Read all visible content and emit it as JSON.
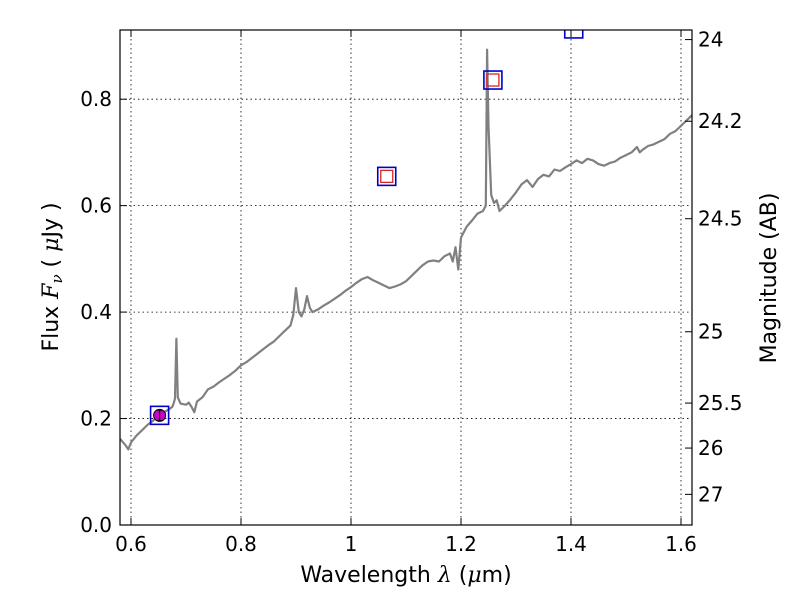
{
  "chart_data": {
    "type": "line",
    "title": "",
    "xlabel": {
      "prefix": "Wavelength  ",
      "symbol": "λ",
      "unit_open": " (",
      "unit_mu": "μ",
      "unit_rest": "m)"
    },
    "ylabel": {
      "prefix": "Flux  ",
      "symbol": "F",
      "sub": "ν",
      "unit_open": "  ( ",
      "unit_mu": "μ",
      "unit_rest": "Jy )"
    },
    "y2label": "Magnitude (AB)",
    "xlim": [
      0.58,
      1.62
    ],
    "ylim": [
      0.0,
      0.93
    ],
    "grid": true,
    "x_ticks": [
      0.6,
      0.8,
      1.0,
      1.2,
      1.4,
      1.6
    ],
    "x_tick_labels": [
      "0.6",
      "0.8",
      "1",
      "1.2",
      "1.4",
      "1.6"
    ],
    "y_ticks": [
      0.0,
      0.2,
      0.4,
      0.6,
      0.8
    ],
    "y_tick_labels": [
      "0.0",
      "0.2",
      "0.4",
      "0.6",
      "0.8"
    ],
    "y2_ticks": [
      24,
      24.2,
      24.5,
      25,
      25.5,
      26,
      27
    ],
    "y2_tick_labels": [
      "24",
      "24.2",
      "24.5",
      "25",
      "25.5",
      "26",
      "27"
    ],
    "series": [
      {
        "color": "#808080",
        "points": [
          [
            0.58,
            0.162
          ],
          [
            0.59,
            0.15
          ],
          [
            0.595,
            0.142
          ],
          [
            0.6,
            0.155
          ],
          [
            0.61,
            0.168
          ],
          [
            0.62,
            0.178
          ],
          [
            0.63,
            0.188
          ],
          [
            0.64,
            0.196
          ],
          [
            0.65,
            0.206
          ],
          [
            0.66,
            0.212
          ],
          [
            0.67,
            0.218
          ],
          [
            0.675,
            0.222
          ],
          [
            0.678,
            0.23
          ],
          [
            0.68,
            0.238
          ],
          [
            0.6825,
            0.35
          ],
          [
            0.685,
            0.24
          ],
          [
            0.69,
            0.228
          ],
          [
            0.7,
            0.226
          ],
          [
            0.705,
            0.23
          ],
          [
            0.71,
            0.222
          ],
          [
            0.715,
            0.212
          ],
          [
            0.72,
            0.232
          ],
          [
            0.73,
            0.24
          ],
          [
            0.74,
            0.255
          ],
          [
            0.75,
            0.26
          ],
          [
            0.76,
            0.268
          ],
          [
            0.77,
            0.275
          ],
          [
            0.78,
            0.282
          ],
          [
            0.79,
            0.29
          ],
          [
            0.8,
            0.3
          ],
          [
            0.81,
            0.306
          ],
          [
            0.82,
            0.314
          ],
          [
            0.83,
            0.322
          ],
          [
            0.84,
            0.33
          ],
          [
            0.85,
            0.338
          ],
          [
            0.86,
            0.345
          ],
          [
            0.87,
            0.355
          ],
          [
            0.88,
            0.365
          ],
          [
            0.89,
            0.375
          ],
          [
            0.895,
            0.395
          ],
          [
            0.9,
            0.445
          ],
          [
            0.905,
            0.4
          ],
          [
            0.91,
            0.392
          ],
          [
            0.915,
            0.405
          ],
          [
            0.92,
            0.43
          ],
          [
            0.925,
            0.408
          ],
          [
            0.93,
            0.4
          ],
          [
            0.94,
            0.405
          ],
          [
            0.95,
            0.412
          ],
          [
            0.96,
            0.418
          ],
          [
            0.97,
            0.425
          ],
          [
            0.98,
            0.432
          ],
          [
            0.99,
            0.44
          ],
          [
            1.0,
            0.447
          ],
          [
            1.01,
            0.455
          ],
          [
            1.02,
            0.462
          ],
          [
            1.03,
            0.466
          ],
          [
            1.04,
            0.46
          ],
          [
            1.05,
            0.455
          ],
          [
            1.06,
            0.45
          ],
          [
            1.07,
            0.445
          ],
          [
            1.08,
            0.448
          ],
          [
            1.09,
            0.452
          ],
          [
            1.1,
            0.458
          ],
          [
            1.11,
            0.468
          ],
          [
            1.12,
            0.478
          ],
          [
            1.13,
            0.488
          ],
          [
            1.14,
            0.495
          ],
          [
            1.15,
            0.497
          ],
          [
            1.16,
            0.495
          ],
          [
            1.17,
            0.505
          ],
          [
            1.18,
            0.51
          ],
          [
            1.185,
            0.495
          ],
          [
            1.19,
            0.522
          ],
          [
            1.195,
            0.48
          ],
          [
            1.2,
            0.54
          ],
          [
            1.21,
            0.56
          ],
          [
            1.22,
            0.572
          ],
          [
            1.23,
            0.585
          ],
          [
            1.24,
            0.59
          ],
          [
            1.245,
            0.6
          ],
          [
            1.2475,
            0.893
          ],
          [
            1.25,
            0.75
          ],
          [
            1.255,
            0.62
          ],
          [
            1.26,
            0.605
          ],
          [
            1.265,
            0.61
          ],
          [
            1.27,
            0.59
          ],
          [
            1.28,
            0.6
          ],
          [
            1.29,
            0.612
          ],
          [
            1.3,
            0.625
          ],
          [
            1.31,
            0.64
          ],
          [
            1.32,
            0.648
          ],
          [
            1.33,
            0.635
          ],
          [
            1.34,
            0.65
          ],
          [
            1.35,
            0.658
          ],
          [
            1.36,
            0.655
          ],
          [
            1.37,
            0.668
          ],
          [
            1.38,
            0.665
          ],
          [
            1.39,
            0.672
          ],
          [
            1.4,
            0.678
          ],
          [
            1.41,
            0.685
          ],
          [
            1.42,
            0.68
          ],
          [
            1.43,
            0.688
          ],
          [
            1.44,
            0.685
          ],
          [
            1.45,
            0.678
          ],
          [
            1.46,
            0.675
          ],
          [
            1.47,
            0.68
          ],
          [
            1.48,
            0.683
          ],
          [
            1.49,
            0.69
          ],
          [
            1.5,
            0.695
          ],
          [
            1.51,
            0.7
          ],
          [
            1.52,
            0.71
          ],
          [
            1.525,
            0.7
          ],
          [
            1.53,
            0.705
          ],
          [
            1.54,
            0.712
          ],
          [
            1.55,
            0.715
          ],
          [
            1.56,
            0.72
          ],
          [
            1.57,
            0.725
          ],
          [
            1.58,
            0.735
          ],
          [
            1.59,
            0.74
          ],
          [
            1.6,
            0.75
          ],
          [
            1.61,
            0.76
          ],
          [
            1.62,
            0.77
          ]
        ]
      }
    ],
    "blue_square_markers": [
      {
        "x": 0.652,
        "y": 0.206
      },
      {
        "x": 1.065,
        "y": 0.655
      },
      {
        "x": 1.258,
        "y": 0.836
      },
      {
        "x": 1.405,
        "y": 0.932
      }
    ],
    "red_square_markers": [
      {
        "x": 1.065,
        "y": 0.655
      },
      {
        "x": 1.258,
        "y": 0.836
      }
    ],
    "magenta_points": [
      {
        "x": 0.652,
        "y": 0.206,
        "yerr": 0.01
      }
    ],
    "colors": {
      "line": "#808080",
      "model_marker": "#0000cc",
      "obs_marker": "#d62728",
      "data_point": "#cc00cc",
      "grid": "#000000"
    }
  }
}
